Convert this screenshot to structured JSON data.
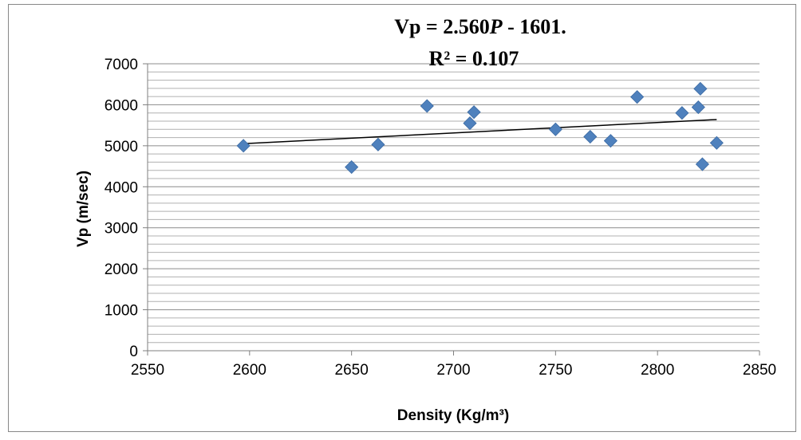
{
  "chart_data": {
    "type": "scatter",
    "title": "",
    "xlabel": "Density (Kg/m³)",
    "ylabel": "Vp (m/sec)",
    "xlim": [
      2550,
      2850
    ],
    "ylim": [
      0,
      7000
    ],
    "x_ticks": [
      "2550",
      "2600",
      "2650",
      "2700",
      "2750",
      "2800",
      "2850"
    ],
    "y_ticks": [
      "0",
      "1000",
      "2000",
      "3000",
      "4000",
      "5000",
      "6000",
      "7000"
    ],
    "grid": "horizontal minor gridlines",
    "legend": "none",
    "marker": "diamond",
    "marker_color": "#4F81BD",
    "points": [
      {
        "x": 2597,
        "y": 5000
      },
      {
        "x": 2650,
        "y": 4480
      },
      {
        "x": 2663,
        "y": 5030
      },
      {
        "x": 2687,
        "y": 5970
      },
      {
        "x": 2708,
        "y": 5550
      },
      {
        "x": 2710,
        "y": 5820
      },
      {
        "x": 2750,
        "y": 5400
      },
      {
        "x": 2767,
        "y": 5220
      },
      {
        "x": 2777,
        "y": 5120
      },
      {
        "x": 2790,
        "y": 6190
      },
      {
        "x": 2812,
        "y": 5800
      },
      {
        "x": 2820,
        "y": 5940
      },
      {
        "x": 2821,
        "y": 6390
      },
      {
        "x": 2822,
        "y": 4550
      },
      {
        "x": 2829,
        "y": 5070
      }
    ],
    "trendline": {
      "type": "linear",
      "x": [
        2597,
        2829
      ],
      "y": [
        5050,
        5640
      ],
      "color": "#000000"
    },
    "annotations": {
      "equation_prefix": "Vp = 2.560",
      "equation_var": "P",
      "equation_suffix": " - 1601.",
      "r_squared": "R² = 0.107"
    }
  }
}
